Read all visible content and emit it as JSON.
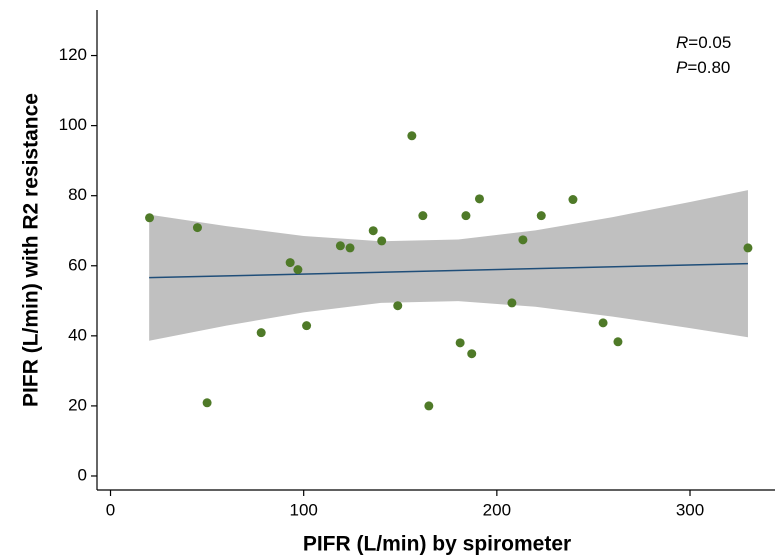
{
  "chart_data": {
    "type": "scatter",
    "x_label": "PIFR (L/min) by spirometer",
    "y_label": "PIFR (L/min) with R2 resistance",
    "annotations": [
      {
        "var": "R",
        "text": "=0.05"
      },
      {
        "var": "P",
        "text": "=0.80"
      }
    ],
    "xlim": [
      -7,
      344
    ],
    "ylim": [
      -4,
      133
    ],
    "xticks": [
      0,
      100,
      200,
      300
    ],
    "yticks": [
      0,
      20,
      40,
      60,
      80,
      100,
      120
    ],
    "grid": false,
    "series": [
      {
        "color": "#4f7a28",
        "x": [
          20.2,
          45,
          50,
          78,
          93,
          97,
          101.5,
          119,
          124,
          136,
          140.4,
          148.7,
          156,
          161.7,
          164.8,
          181,
          184,
          187,
          191,
          207.8,
          213.5,
          223,
          239.4,
          255,
          262.7,
          330
        ],
        "values": [
          73.7,
          70.9,
          20.9,
          40.9,
          60.9,
          58.9,
          42.9,
          65.7,
          65.1,
          70,
          67.1,
          48.6,
          97.1,
          74.3,
          20,
          38,
          74.3,
          34.9,
          79.1,
          49.4,
          67.4,
          74.3,
          78.9,
          43.7,
          38.3,
          65.1
        ]
      }
    ],
    "fit": {
      "color": "#1f4e79",
      "x": [
        20,
        330
      ],
      "y": [
        56.6,
        60.6
      ]
    },
    "band": {
      "color": "#c0c0c0",
      "x": [
        20,
        60,
        100,
        140,
        180,
        220,
        260,
        300,
        330
      ],
      "lower": [
        38.6,
        42.9,
        46.7,
        49.4,
        49.9,
        48.3,
        45.5,
        42.2,
        39.6
      ],
      "upper": [
        74.6,
        71.3,
        68.5,
        67.0,
        67.5,
        70.1,
        73.9,
        78.2,
        81.6
      ]
    }
  }
}
